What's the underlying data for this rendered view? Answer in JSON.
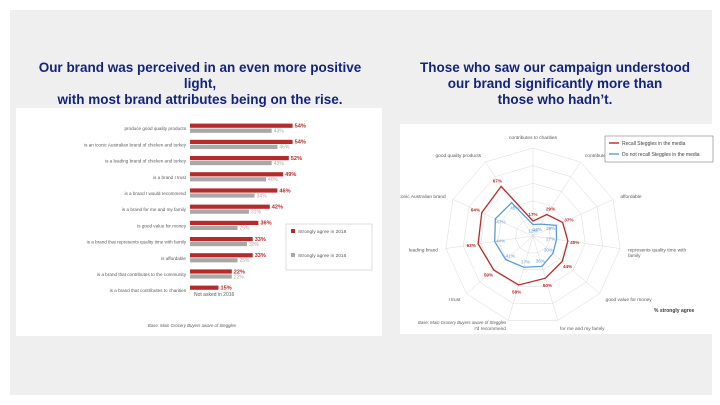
{
  "slide": {
    "left_headline": [
      "Our brand was perceived in an even more positive light,",
      "with most brand attributes being on the rise."
    ],
    "right_headline": [
      "Those who saw our campaign understood",
      "our brand significantly more than",
      "those who hadn’t."
    ]
  },
  "colors": {
    "red": "#b52a2a",
    "grey": "#a8a8a8",
    "blue": "#5d9bd3",
    "navy": "#14247a",
    "text": "#595959"
  },
  "chart_data": [
    {
      "type": "bar",
      "orientation": "horizontal",
      "categories": [
        "produce good quality products",
        "is an iconic Australian brand of chicken and turkey",
        "is a leading brand of chicken and turkey",
        "is a brand I trust",
        "is a brand I would recommend",
        "is a brand for me and my family",
        "is good value for money",
        "is a brand that represents quality time with family",
        "is affordable",
        "is a brand that contributes to the community",
        "is a brand that contributes to charities"
      ],
      "series": [
        {
          "name": "Strongly agree in 2018",
          "values": [
            54,
            54,
            52,
            49,
            46,
            42,
            36,
            33,
            33,
            22,
            15
          ],
          "labels": [
            "54%",
            "54%",
            "52%",
            "49%",
            "46%",
            "42%",
            "36%",
            "33%",
            "33%",
            "22%",
            "15%"
          ]
        },
        {
          "name": "Strongly agree in 2016",
          "values": [
            43,
            46,
            43,
            40,
            34,
            31,
            25,
            30,
            25,
            22,
            null
          ],
          "labels": [
            "43%",
            "46%",
            "43%",
            "40%",
            "34%",
            "31%",
            "25%",
            "30%",
            "25%",
            "22%",
            ""
          ]
        }
      ],
      "annotation": "Not asked in 2016",
      "base_note": "Base: Main Grocery Buyers aware of Steggles",
      "xlim": [
        0,
        100
      ]
    },
    {
      "type": "radar",
      "categories": [
        "contributes to charities",
        "contributes to the community",
        "affordable",
        "represents quality time with family",
        "good value for money",
        "for me and my family",
        "I'd recommend",
        "I trust",
        "leading brand",
        "iconic Australian brand",
        "good quality products"
      ],
      "series": [
        {
          "name": "Recall Steggles in the media",
          "values": [
            17,
            29,
            37,
            40,
            44,
            50,
            58,
            59,
            63,
            64,
            67
          ],
          "labels": [
            "17%",
            "29%",
            "37%",
            "40%",
            "44%",
            "50%",
            "58%",
            "59%",
            "63%",
            "64%",
            "67%"
          ]
        },
        {
          "name": "Do not recall Steggles in the media",
          "values": [
            13,
            16,
            29,
            27,
            30,
            36,
            37,
            41,
            44,
            47,
            45
          ],
          "labels": [
            "13%",
            "16%",
            "29%",
            "27%",
            "30%",
            "36%",
            "37%",
            "41%",
            "44%",
            "47%",
            "45%"
          ]
        }
      ],
      "axis_label": "% strongly agree",
      "base_note": "Base: Main Grocery Buyers aware of Steggles",
      "rlim": [
        0,
        100
      ]
    }
  ]
}
